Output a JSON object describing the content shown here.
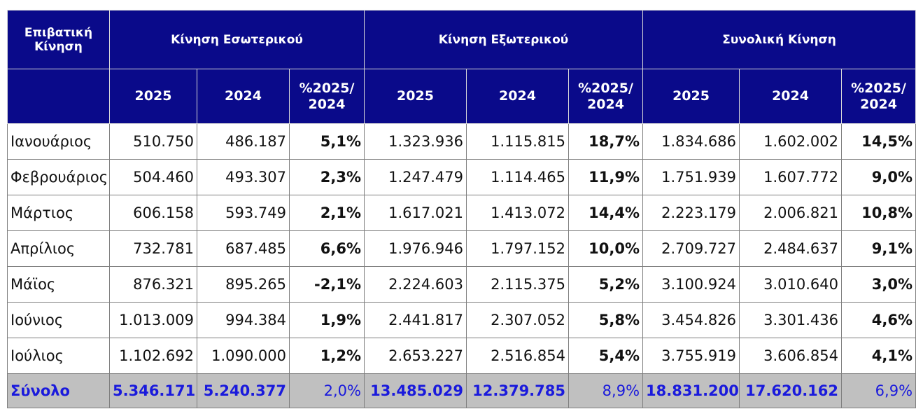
{
  "header": {
    "corner_label": "Επιβατική Κίνηση",
    "groups": [
      "Κίνηση Εσωτερικού",
      "Κίνηση Εξωτερικού",
      "Συνολική Κίνηση"
    ],
    "col_2025": "2025",
    "col_2024": "2024",
    "col_pct_line1": "%2025/",
    "col_pct_line2": "2024"
  },
  "rows": [
    {
      "month": "Ιανουάριος",
      "dom_2025": "510.750",
      "dom_2024": "486.187",
      "dom_pct": "5,1%",
      "int_2025": "1.323.936",
      "int_2024": "1.115.815",
      "int_pct": "18,7%",
      "tot_2025": "1.834.686",
      "tot_2024": "1.602.002",
      "tot_pct": "14,5%"
    },
    {
      "month": "Φεβρουάριος",
      "dom_2025": "504.460",
      "dom_2024": "493.307",
      "dom_pct": "2,3%",
      "int_2025": "1.247.479",
      "int_2024": "1.114.465",
      "int_pct": "11,9%",
      "tot_2025": "1.751.939",
      "tot_2024": "1.607.772",
      "tot_pct": "9,0%"
    },
    {
      "month": "Μάρτιος",
      "dom_2025": "606.158",
      "dom_2024": "593.749",
      "dom_pct": "2,1%",
      "int_2025": "1.617.021",
      "int_2024": "1.413.072",
      "int_pct": "14,4%",
      "tot_2025": "2.223.179",
      "tot_2024": "2.006.821",
      "tot_pct": "10,8%"
    },
    {
      "month": "Απρίλιος",
      "dom_2025": "732.781",
      "dom_2024": "687.485",
      "dom_pct": "6,6%",
      "int_2025": "1.976.946",
      "int_2024": "1.797.152",
      "int_pct": "10,0%",
      "tot_2025": "2.709.727",
      "tot_2024": "2.484.637",
      "tot_pct": "9,1%"
    },
    {
      "month": "Μάϊος",
      "dom_2025": "876.321",
      "dom_2024": "895.265",
      "dom_pct": "-2,1%",
      "int_2025": "2.224.603",
      "int_2024": "2.115.375",
      "int_pct": "5,2%",
      "tot_2025": "3.100.924",
      "tot_2024": "3.010.640",
      "tot_pct": "3,0%"
    },
    {
      "month": "Ιούνιος",
      "dom_2025": "1.013.009",
      "dom_2024": "994.384",
      "dom_pct": "1,9%",
      "int_2025": "2.441.817",
      "int_2024": "2.307.052",
      "int_pct": "5,8%",
      "tot_2025": "3.454.826",
      "tot_2024": "3.301.436",
      "tot_pct": "4,6%"
    },
    {
      "month": "Ιούλιος",
      "dom_2025": "1.102.692",
      "dom_2024": "1.090.000",
      "dom_pct": "1,2%",
      "int_2025": "2.653.227",
      "int_2024": "2.516.854",
      "int_pct": "5,4%",
      "tot_2025": "3.755.919",
      "tot_2024": "3.606.854",
      "tot_pct": "4,1%"
    }
  ],
  "total": {
    "month": "Σύνολο",
    "dom_2025": "5.346.171",
    "dom_2024": "5.240.377",
    "dom_pct": "2,0%",
    "int_2025": "13.485.029",
    "int_2024": "12.379.785",
    "int_pct": "8,9%",
    "tot_2025": "18.831.200",
    "tot_2024": "17.620.162",
    "tot_pct": "6,9%"
  }
}
